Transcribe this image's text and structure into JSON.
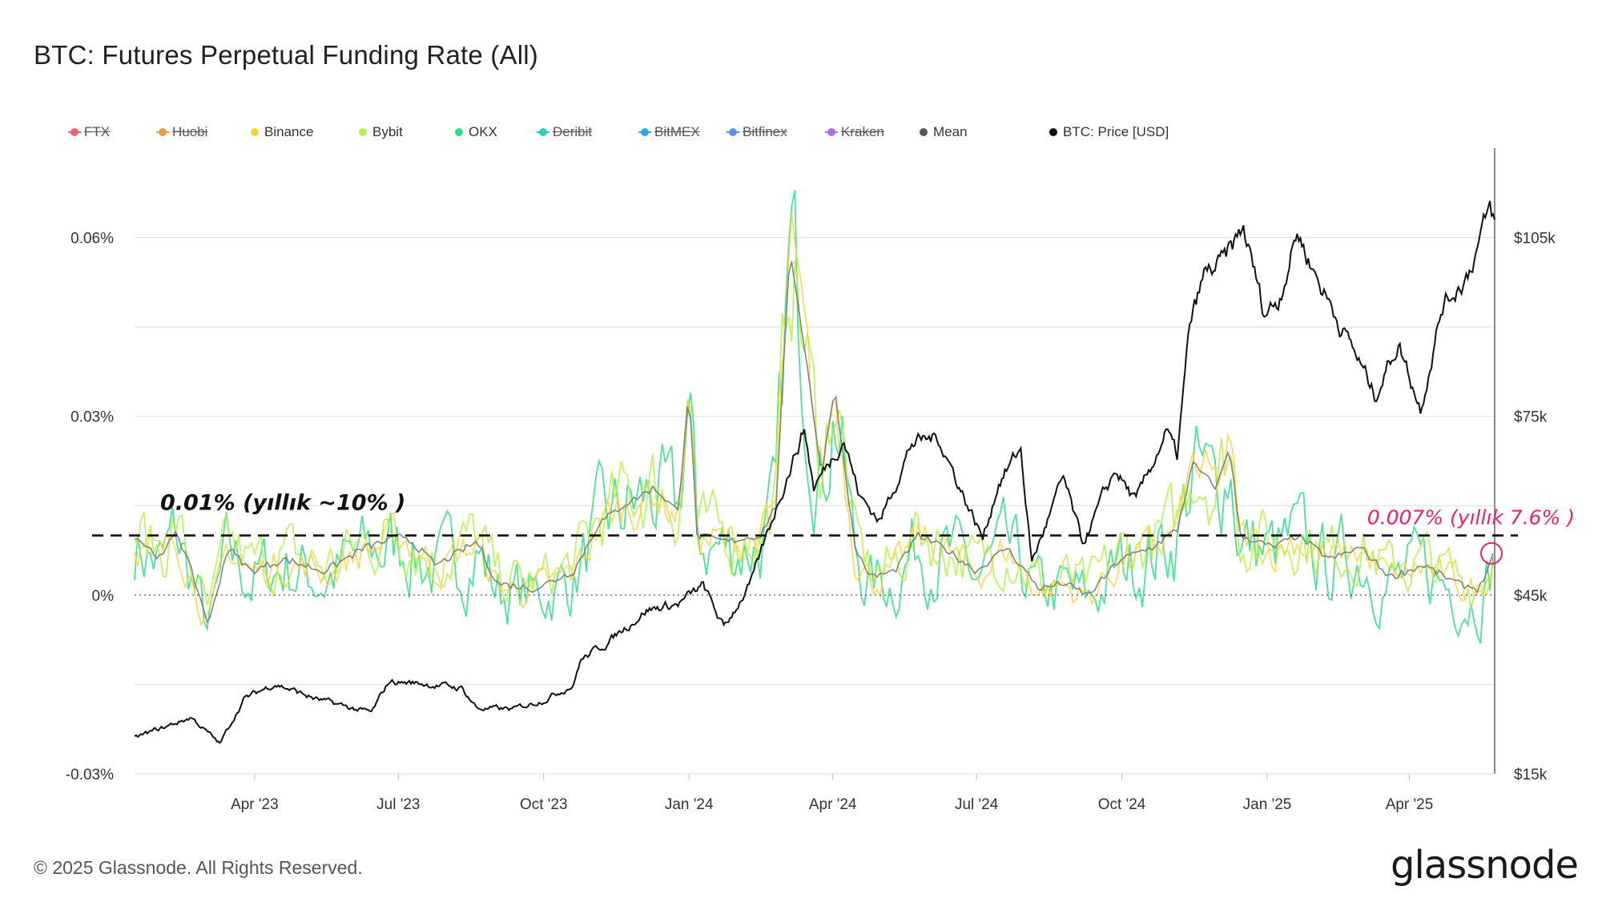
{
  "title": "BTC: Futures Perpetual Funding Rate (All)",
  "copyright": "© 2025 Glassnode. All Rights Reserved.",
  "brand": "glassnode",
  "legend": [
    {
      "label": "FTX",
      "color": "#f0606e",
      "struck": true
    },
    {
      "label": "Huobi",
      "color": "#f39a4c",
      "struck": true
    },
    {
      "label": "Binance",
      "color": "#f7d33b",
      "struck": false
    },
    {
      "label": "Bybit",
      "color": "#b7f04a",
      "struck": false
    },
    {
      "label": "OKX",
      "color": "#2fdc8a",
      "struck": false
    },
    {
      "label": "Deribit",
      "color": "#2fcfc0",
      "struck": true
    },
    {
      "label": "BitMEX",
      "color": "#2fa8e0",
      "struck": true
    },
    {
      "label": "Bitfinex",
      "color": "#5b8ff0",
      "struck": true
    },
    {
      "label": "Kraken",
      "color": "#b26cf0",
      "struck": true
    },
    {
      "label": "Mean",
      "color": "#555555",
      "struck": false
    },
    {
      "label": "BTC: Price [USD]",
      "color": "#111111",
      "struck": false
    }
  ],
  "annotations": {
    "left_text": "0.01% (yıllık ~10% )",
    "right_text": "0.007% (yıllık 7.6% )",
    "right_color": "#e8246a"
  },
  "chart_data": {
    "type": "line",
    "x_ticks": [
      "Apr '23",
      "Jul '23",
      "Oct '23",
      "Jan '24",
      "Apr '24",
      "Jul '24",
      "Oct '24",
      "Jan '25",
      "Apr '25"
    ],
    "y_left_ticks": [
      "0.06%",
      "0.03%",
      "0%",
      "-0.03%"
    ],
    "y_right_ticks": [
      "$105k",
      "$75k",
      "$45k",
      "$15k"
    ],
    "y_left_range": [
      -0.03,
      0.075
    ],
    "y_right_range": [
      15000,
      120000
    ],
    "x_range": [
      "2023-01-15",
      "2025-05-25"
    ],
    "reference_lines": [
      {
        "value": 0.01,
        "style": "dashed"
      },
      {
        "value": 0,
        "style": "dotted"
      }
    ],
    "series": [
      {
        "name": "BTC: Price [USD]",
        "axis": "right",
        "color": "#111111",
        "points": [
          [
            "2023-01-15",
            21000
          ],
          [
            "2023-02-05",
            23000
          ],
          [
            "2023-02-20",
            24500
          ],
          [
            "2023-03-10",
            20000
          ],
          [
            "2023-03-25",
            27500
          ],
          [
            "2023-04-14",
            30200
          ],
          [
            "2023-05-10",
            27500
          ],
          [
            "2023-06-14",
            25200
          ],
          [
            "2023-06-25",
            30500
          ],
          [
            "2023-07-15",
            30200
          ],
          [
            "2023-08-10",
            29400
          ],
          [
            "2023-08-20",
            26000
          ],
          [
            "2023-09-12",
            25800
          ],
          [
            "2023-10-01",
            27500
          ],
          [
            "2023-10-20",
            30000
          ],
          [
            "2023-10-24",
            34000
          ],
          [
            "2023-11-10",
            37000
          ],
          [
            "2023-12-05",
            42500
          ],
          [
            "2023-12-25",
            43500
          ],
          [
            "2024-01-10",
            46500
          ],
          [
            "2024-01-23",
            39500
          ],
          [
            "2024-02-10",
            47500
          ],
          [
            "2024-02-28",
            62000
          ],
          [
            "2024-03-14",
            73000
          ],
          [
            "2024-03-20",
            63000
          ],
          [
            "2024-04-08",
            71500
          ],
          [
            "2024-04-18",
            61500
          ],
          [
            "2024-05-01",
            57500
          ],
          [
            "2024-05-21",
            70500
          ],
          [
            "2024-06-07",
            71500
          ],
          [
            "2024-06-24",
            61000
          ],
          [
            "2024-07-05",
            54500
          ],
          [
            "2024-07-15",
            64000
          ],
          [
            "2024-07-29",
            69500
          ],
          [
            "2024-08-05",
            50500
          ],
          [
            "2024-08-25",
            64500
          ],
          [
            "2024-09-06",
            53500
          ],
          [
            "2024-09-27",
            66000
          ],
          [
            "2024-10-10",
            60500
          ],
          [
            "2024-10-29",
            72500
          ],
          [
            "2024-11-05",
            68000
          ],
          [
            "2024-11-13",
            90000
          ],
          [
            "2024-11-22",
            98500
          ],
          [
            "2024-12-05",
            101000
          ],
          [
            "2024-12-17",
            106500
          ],
          [
            "2024-12-30",
            92500
          ],
          [
            "2025-01-08",
            94500
          ],
          [
            "2025-01-20",
            106000
          ],
          [
            "2025-02-03",
            97500
          ],
          [
            "2025-02-25",
            86000
          ],
          [
            "2025-03-10",
            78500
          ],
          [
            "2025-03-25",
            87500
          ],
          [
            "2025-04-08",
            76500
          ],
          [
            "2025-04-22",
            93500
          ],
          [
            "2025-05-08",
            99000
          ],
          [
            "2025-05-22",
            109500
          ],
          [
            "2025-05-25",
            107500
          ]
        ]
      },
      {
        "name": "Mean",
        "axis": "left",
        "color": "#777777",
        "points": [
          [
            "2023-01-15",
            0.01
          ],
          [
            "2023-02-01",
            0.006
          ],
          [
            "2023-02-10",
            0.011
          ],
          [
            "2023-02-20",
            0.004
          ],
          [
            "2023-03-03",
            -0.005
          ],
          [
            "2023-03-15",
            0.008
          ],
          [
            "2023-03-30",
            0.004
          ],
          [
            "2023-04-20",
            0.006
          ],
          [
            "2023-05-15",
            0.004
          ],
          [
            "2023-06-10",
            0.008
          ],
          [
            "2023-07-05",
            0.01
          ],
          [
            "2023-07-25",
            0.005
          ],
          [
            "2023-08-20",
            0.009
          ],
          [
            "2023-09-01",
            0.002
          ],
          [
            "2023-09-25",
            0.001
          ],
          [
            "2023-10-20",
            0.004
          ],
          [
            "2023-11-05",
            0.012
          ],
          [
            "2023-11-20",
            0.015
          ],
          [
            "2023-12-10",
            0.018
          ],
          [
            "2023-12-25",
            0.014
          ],
          [
            "2024-01-01",
            0.035
          ],
          [
            "2024-01-06",
            0.01
          ],
          [
            "2024-01-25",
            0.009
          ],
          [
            "2024-02-15",
            0.01
          ],
          [
            "2024-02-25",
            0.015
          ],
          [
            "2024-03-05",
            0.058
          ],
          [
            "2024-03-15",
            0.04
          ],
          [
            "2024-03-25",
            0.02
          ],
          [
            "2024-04-02",
            0.035
          ],
          [
            "2024-04-15",
            0.008
          ],
          [
            "2024-04-25",
            0.003
          ],
          [
            "2024-05-10",
            0.004
          ],
          [
            "2024-05-25",
            0.01
          ],
          [
            "2024-06-10",
            0.008
          ],
          [
            "2024-07-01",
            0.004
          ],
          [
            "2024-07-20",
            0.008
          ],
          [
            "2024-08-10",
            0.001
          ],
          [
            "2024-08-25",
            0.002
          ],
          [
            "2024-09-10",
            0.0
          ],
          [
            "2024-09-30",
            0.006
          ],
          [
            "2024-10-20",
            0.008
          ],
          [
            "2024-11-05",
            0.011
          ],
          [
            "2024-11-15",
            0.022
          ],
          [
            "2024-11-30",
            0.018
          ],
          [
            "2024-12-08",
            0.025
          ],
          [
            "2024-12-15",
            0.01
          ],
          [
            "2025-01-05",
            0.008
          ],
          [
            "2025-01-20",
            0.01
          ],
          [
            "2025-02-10",
            0.006
          ],
          [
            "2025-03-01",
            0.008
          ],
          [
            "2025-03-20",
            0.003
          ],
          [
            "2025-04-10",
            0.005
          ],
          [
            "2025-05-01",
            0.002
          ],
          [
            "2025-05-15",
            0.001
          ],
          [
            "2025-05-25",
            0.007
          ]
        ]
      }
    ]
  }
}
